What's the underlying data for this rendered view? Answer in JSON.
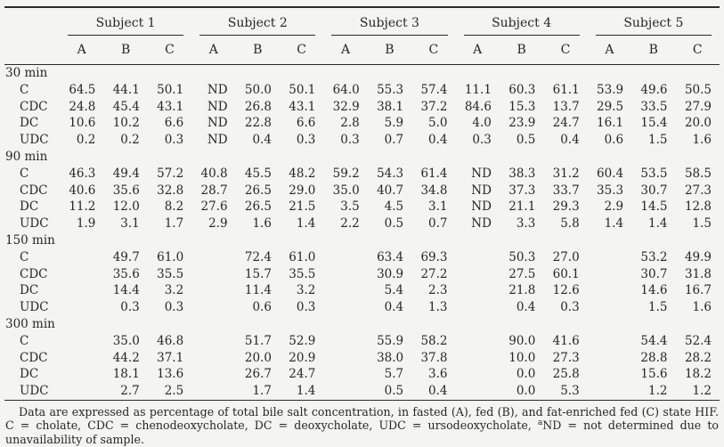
{
  "table": {
    "column_groups": [
      "Subject 1",
      "Subject 2",
      "Subject 3",
      "Subject 4",
      "Subject 5"
    ],
    "sub_columns": [
      "A",
      "B",
      "C"
    ],
    "sections": [
      {
        "time": "30 min",
        "rows": [
          {
            "label": "C",
            "values": [
              "64.5",
              "44.1",
              "50.1",
              "ND",
              "50.0",
              "50.1",
              "64.0",
              "55.3",
              "57.4",
              "11.1",
              "60.3",
              "61.1",
              "53.9",
              "49.6",
              "50.5"
            ]
          },
          {
            "label": "CDC",
            "values": [
              "24.8",
              "45.4",
              "43.1",
              "ND",
              "26.8",
              "43.1",
              "32.9",
              "38.1",
              "37.2",
              "84.6",
              "15.3",
              "13.7",
              "29.5",
              "33.5",
              "27.9"
            ]
          },
          {
            "label": "DC",
            "values": [
              "10.6",
              "10.2",
              "6.6",
              "ND",
              "22.8",
              "6.6",
              "2.8",
              "5.9",
              "5.0",
              "4.0",
              "23.9",
              "24.7",
              "16.1",
              "15.4",
              "20.0"
            ]
          },
          {
            "label": "UDC",
            "values": [
              "0.2",
              "0.2",
              "0.3",
              "ND",
              "0.4",
              "0.3",
              "0.3",
              "0.7",
              "0.4",
              "0.3",
              "0.5",
              "0.4",
              "0.6",
              "1.5",
              "1.6"
            ]
          }
        ]
      },
      {
        "time": "90 min",
        "rows": [
          {
            "label": "C",
            "values": [
              "46.3",
              "49.4",
              "57.2",
              "40.8",
              "45.5",
              "48.2",
              "59.2",
              "54.3",
              "61.4",
              "ND",
              "38.3",
              "31.2",
              "60.4",
              "53.5",
              "58.5"
            ]
          },
          {
            "label": "CDC",
            "values": [
              "40.6",
              "35.6",
              "32.8",
              "28.7",
              "26.5",
              "29.0",
              "35.0",
              "40.7",
              "34.8",
              "ND",
              "37.3",
              "33.7",
              "35.3",
              "30.7",
              "27.3"
            ]
          },
          {
            "label": "DC",
            "values": [
              "11.2",
              "12.0",
              "8.2",
              "27.6",
              "26.5",
              "21.5",
              "3.5",
              "4.5",
              "3.1",
              "ND",
              "21.1",
              "29.3",
              "2.9",
              "14.5",
              "12.8"
            ]
          },
          {
            "label": "UDC",
            "values": [
              "1.9",
              "3.1",
              "1.7",
              "2.9",
              "1.6",
              "1.4",
              "2.2",
              "0.5",
              "0.7",
              "ND",
              "3.3",
              "5.8",
              "1.4",
              "1.4",
              "1.5"
            ]
          }
        ]
      },
      {
        "time": "150 min",
        "rows": [
          {
            "label": "C",
            "values": [
              "",
              "49.7",
              "61.0",
              "",
              "72.4",
              "61.0",
              "",
              "63.4",
              "69.3",
              "",
              "50.3",
              "27.0",
              "",
              "53.2",
              "49.9"
            ]
          },
          {
            "label": "CDC",
            "values": [
              "",
              "35.6",
              "35.5",
              "",
              "15.7",
              "35.5",
              "",
              "30.9",
              "27.2",
              "",
              "27.5",
              "60.1",
              "",
              "30.7",
              "31.8"
            ]
          },
          {
            "label": "DC",
            "values": [
              "",
              "14.4",
              "3.2",
              "",
              "11.4",
              "3.2",
              "",
              "5.4",
              "2.3",
              "",
              "21.8",
              "12.6",
              "",
              "14.6",
              "16.7"
            ]
          },
          {
            "label": "UDC",
            "values": [
              "",
              "0.3",
              "0.3",
              "",
              "0.6",
              "0.3",
              "",
              "0.4",
              "1.3",
              "",
              "0.4",
              "0.3",
              "",
              "1.5",
              "1.6"
            ]
          }
        ]
      },
      {
        "time": "300 min",
        "rows": [
          {
            "label": "C",
            "values": [
              "",
              "35.0",
              "46.8",
              "",
              "51.7",
              "52.9",
              "",
              "55.9",
              "58.2",
              "",
              "90.0",
              "41.6",
              "",
              "54.4",
              "52.4"
            ]
          },
          {
            "label": "CDC",
            "values": [
              "",
              "44.2",
              "37.1",
              "",
              "20.0",
              "20.9",
              "",
              "38.0",
              "37.8",
              "",
              "10.0",
              "27.3",
              "",
              "28.8",
              "28.2"
            ]
          },
          {
            "label": "DC",
            "values": [
              "",
              "18.1",
              "13.6",
              "",
              "26.7",
              "24.7",
              "",
              "5.7",
              "3.6",
              "",
              "0.0",
              "25.8",
              "",
              "15.6",
              "18.2"
            ]
          },
          {
            "label": "UDC",
            "values": [
              "",
              "2.7",
              "2.5",
              "",
              "1.7",
              "1.4",
              "",
              "0.5",
              "0.4",
              "",
              "0.0",
              "5.3",
              "",
              "1.2",
              "1.2"
            ]
          }
        ]
      }
    ]
  },
  "footnote": {
    "part1": "Data are expressed as percentage of total bile salt concentration, in fasted (A), fed (B), and fat-enriched fed (C) state HIF. C = cholate, CDC = chenodeoxycholate, DC = deoxycholate, UDC = ursodeoxycholate, ",
    "sup": "a",
    "part2": "ND = not determined due to unavailability of sample."
  },
  "colors": {
    "background": "#f4f4f1",
    "text": "#262626",
    "rule": "#2b2b2b"
  }
}
